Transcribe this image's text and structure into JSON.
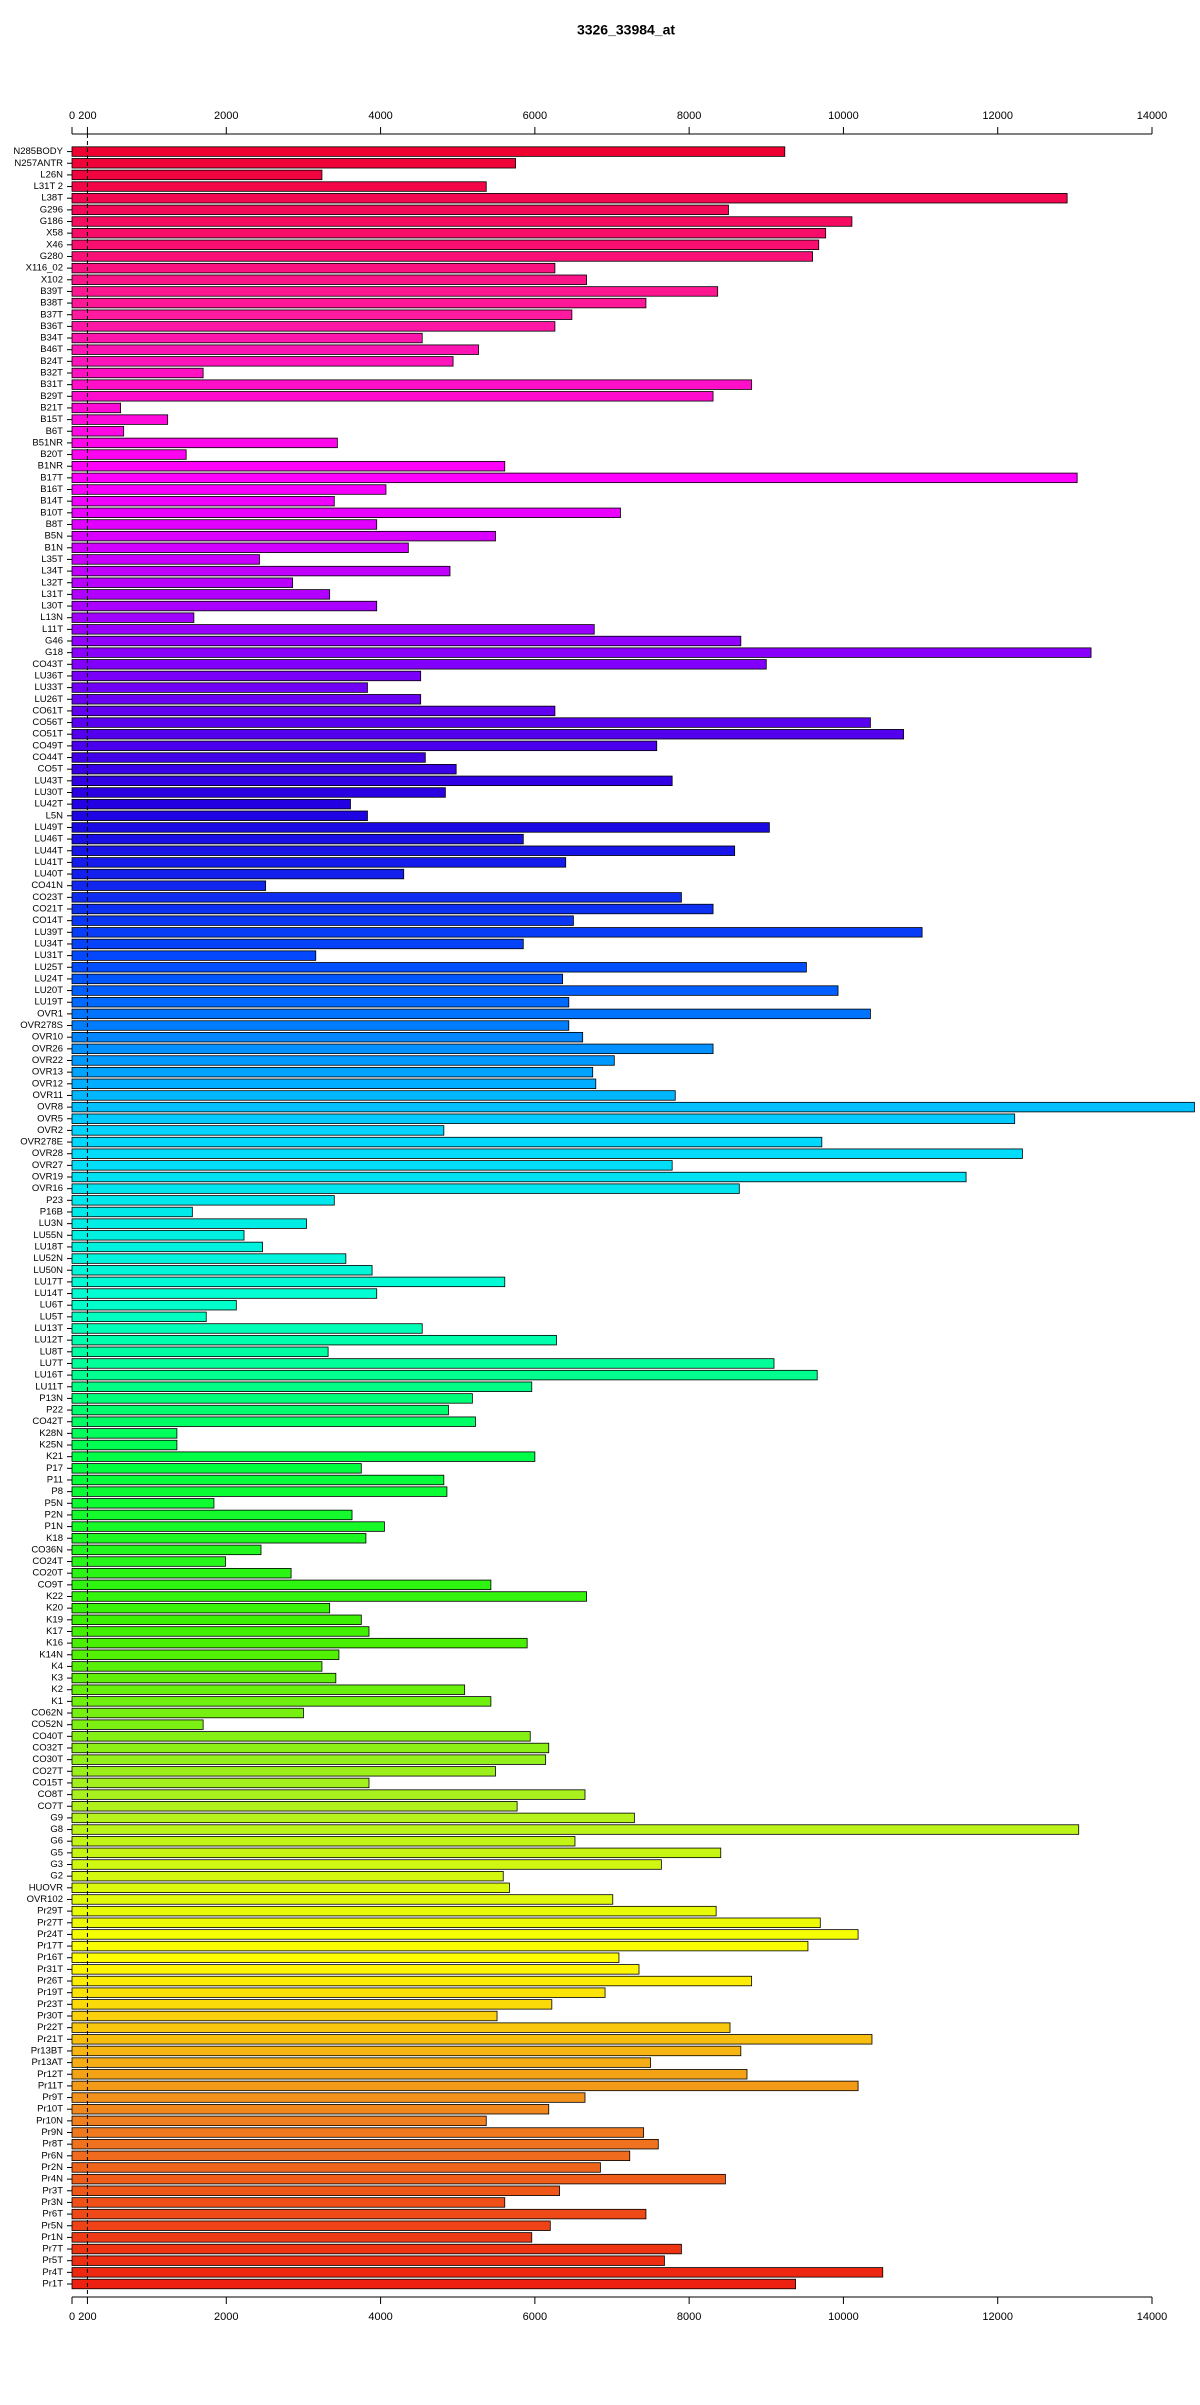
{
  "chart_data": {
    "type": "barh",
    "title": "3326_33984_at",
    "categories": [
      "N285BODY",
      "N257ANTR",
      "L26N",
      "L31T 2",
      "L38T",
      "G296",
      "G186",
      "X58",
      "X46",
      "G280",
      "X116_02",
      "X102",
      "B39T",
      "B38T",
      "B37T",
      "B36T",
      "B34T",
      "B46T",
      "B24T",
      "B32T",
      "B31T",
      "B29T",
      "B21T",
      "B15T",
      "B6T",
      "B51NR",
      "B20T",
      "B1NR",
      "B17T",
      "B16T",
      "B14T",
      "B10T",
      "B8T",
      "B5N",
      "B1N",
      "L35T",
      "L34T",
      "L32T",
      "L31T",
      "L30T",
      "L13N",
      "L11T",
      "G46",
      "G18",
      "CO43T",
      "LU36T",
      "LU33T",
      "LU26T",
      "CO61T",
      "CO56T",
      "CO51T",
      "CO49T",
      "CO44T",
      "CO5T",
      "LU43T",
      "LU30T",
      "LU42T",
      "L5N",
      "LU49T",
      "LU46T",
      "LU44T",
      "LU41T",
      "LU40T",
      "CO41N",
      "CO23T",
      "CO21T",
      "CO14T",
      "LU39T",
      "LU34T",
      "LU31T",
      "LU25T",
      "LU24T",
      "LU20T",
      "LU19T",
      "OVR1",
      "OVR278S",
      "OVR10",
      "OVR26",
      "OVR22",
      "OVR13",
      "OVR12",
      "OVR11",
      "OVR8",
      "OVR5",
      "OVR2",
      "OVR278E",
      "OVR28",
      "OVR27",
      "OVR19",
      "OVR16",
      "P23",
      "P16B",
      "LU3N",
      "LU55N",
      "LU18T",
      "LU52N",
      "LU50N",
      "LU17T",
      "LU14T",
      "LU6T",
      "LU5T",
      "LU13T",
      "LU12T",
      "LU8T",
      "LU7T",
      "LU16T",
      "LU11T",
      "P13N",
      "P22",
      "CO42T",
      "K28N",
      "K25N",
      "K21",
      "P17",
      "P11",
      "P8",
      "P5N",
      "P2N",
      "P1N",
      "K18",
      "CO36N",
      "CO24T",
      "CO20T",
      "CO9T",
      "K22",
      "K20",
      "K19",
      "K17",
      "K16",
      "K14N",
      "K4",
      "K3",
      "K2",
      "K1",
      "CO62N",
      "CO52N",
      "CO40T",
      "CO32T",
      "CO30T",
      "CO27T",
      "CO15T",
      "CO8T",
      "CO7T",
      "G9",
      "G8",
      "G6",
      "G5",
      "G3",
      "G2",
      "HUOVR",
      "OVR102",
      "Pr29T",
      "Pr27T",
      "Pr24T",
      "Pr17T",
      "Pr16T",
      "Pr31T",
      "Pr26T",
      "Pr19T",
      "Pr23T",
      "Pr30T",
      "Pr22T",
      "Pr21T",
      "Pr13BT",
      "Pr13AT",
      "Pr12T",
      "Pr11T",
      "Pr9T",
      "Pr10T",
      "Pr10N",
      "Pr9N",
      "Pr8T",
      "Pr6N",
      "Pr2N",
      "Pr4N",
      "Pr3T",
      "Pr3N",
      "Pr6T",
      "Pr5N",
      "Pr1N",
      "Pr7T",
      "Pr5T",
      "Pr4T",
      "Pr1T"
    ],
    "values": [
      9240,
      5750,
      3240,
      5370,
      12900,
      8510,
      10110,
      9770,
      9680,
      9600,
      6260,
      6670,
      8370,
      7440,
      6480,
      6260,
      4540,
      5270,
      4940,
      1700,
      8810,
      8310,
      630,
      1240,
      670,
      3440,
      1480,
      5610,
      13030,
      4070,
      3400,
      7110,
      3950,
      5490,
      4360,
      2430,
      4900,
      2860,
      3340,
      3950,
      1580,
      6770,
      8670,
      13210,
      9000,
      4520,
      3830,
      4520,
      6260,
      10350,
      10780,
      7580,
      4580,
      4980,
      7780,
      4840,
      3610,
      3830,
      9040,
      5850,
      8590,
      6400,
      4300,
      2510,
      7900,
      8310,
      6500,
      11020,
      5850,
      3160,
      9520,
      6360,
      9930,
      6440,
      10350,
      6440,
      6620,
      8310,
      7030,
      6750,
      6790,
      7820,
      14550,
      12220,
      4820,
      9720,
      12320,
      7780,
      11590,
      8650,
      3400,
      1560,
      3040,
      2230,
      2470,
      3550,
      3890,
      5610,
      3950,
      2130,
      1740,
      4540,
      6280,
      3320,
      9100,
      9660,
      5960,
      5190,
      4880,
      5230,
      1360,
      1360,
      6000,
      3750,
      4820,
      4860,
      1840,
      3630,
      4050,
      3810,
      2450,
      1990,
      2840,
      5430,
      6670,
      3340,
      3750,
      3850,
      5900,
      3460,
      3240,
      3420,
      5090,
      5430,
      3000,
      1700,
      5940,
      6180,
      6140,
      5490,
      3850,
      6650,
      5770,
      7290,
      13050,
      6520,
      8410,
      7640,
      5590,
      5670,
      7010,
      8350,
      9700,
      10190,
      9540,
      7090,
      7350,
      8810,
      6910,
      6220,
      5510,
      8530,
      10370,
      8670,
      7500,
      8750,
      10190,
      6650,
      6180,
      5370,
      7410,
      7600,
      7230,
      6850,
      8470,
      6320,
      5610,
      7440,
      6200,
      5960,
      7900,
      7680,
      10510,
      9380
    ],
    "color_stops": [
      "#ee0030",
      "#ff1aa0",
      "#ff00ff",
      "#9000ff",
      "#2000e0",
      "#0050ff",
      "#00d8ff",
      "#00ffd0",
      "#00ff40",
      "#40f000",
      "#a8f020",
      "#ffff00",
      "#f08020",
      "#ee2010"
    ],
    "xlim": [
      0,
      14000
    ],
    "xticks": [
      0,
      200,
      2000,
      4000,
      6000,
      8000,
      10000,
      12000,
      14000
    ]
  }
}
